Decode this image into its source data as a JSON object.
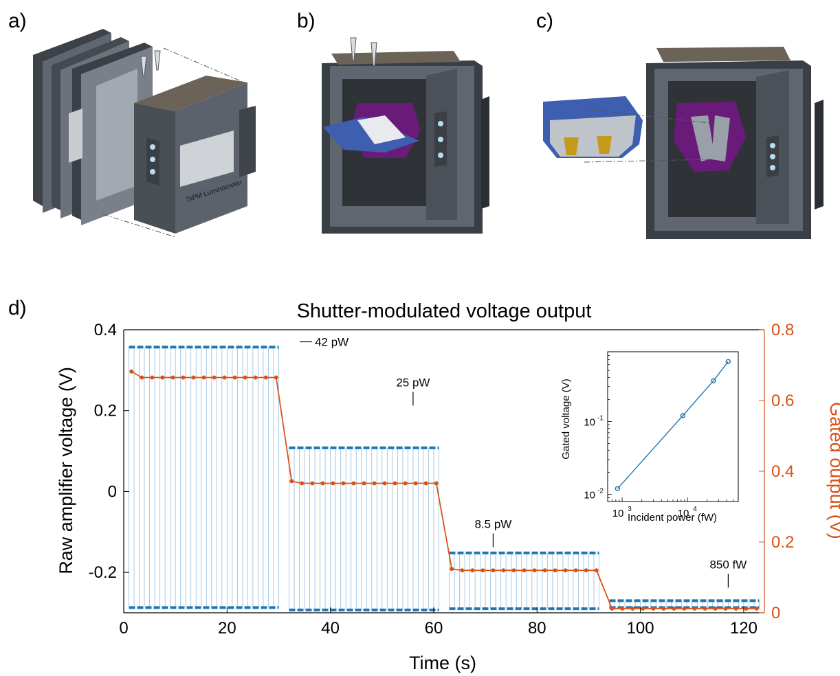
{
  "panels": {
    "a": "a)",
    "b": "b)",
    "c": "c)",
    "d": "d)"
  },
  "device_label": "SiPM Luminometer",
  "colors": {
    "blue": "#1f77b4",
    "orange": "#d95319",
    "purple": "#6a1b7a",
    "device_gray": "#5f6670",
    "device_dark": "#2f3338",
    "lid": "#6b6358",
    "insert_blue": "#3e5fb0",
    "gold": "#c49a1c"
  },
  "chart_data": {
    "type": "line",
    "title": "Shutter-modulated voltage output",
    "xlabel": "Time (s)",
    "ylabel": "Raw amplifier voltage (V)",
    "y2label": "Gated output (V)",
    "xlim": [
      0,
      124
    ],
    "ylim": [
      -0.3,
      0.4
    ],
    "y2lim": [
      0,
      0.8
    ],
    "xticks": [
      "0",
      "20",
      "40",
      "60",
      "80",
      "100",
      "120"
    ],
    "yticks": [
      "-0.2",
      "0",
      "0.2",
      "0.4"
    ],
    "y2ticks": [
      "0",
      "0.2",
      "0.4",
      "0.6",
      "0.8"
    ],
    "raw_series": {
      "name": "Raw amplifier voltage",
      "segments": [
        {
          "t_start": 1,
          "t_end": 30,
          "high": 0.357,
          "low": -0.287
        },
        {
          "t_start": 32,
          "t_end": 61,
          "high": 0.108,
          "low": -0.293
        },
        {
          "t_start": 63,
          "t_end": 92,
          "high": -0.152,
          "low": -0.29
        },
        {
          "t_start": 94,
          "t_end": 123,
          "high": -0.27,
          "low": -0.287
        }
      ],
      "period": 1
    },
    "gated_series": {
      "name": "Gated output",
      "points": [
        [
          1.5,
          0.682
        ],
        [
          3.5,
          0.665
        ],
        [
          5.5,
          0.665
        ],
        [
          7.5,
          0.665
        ],
        [
          9.5,
          0.665
        ],
        [
          11.5,
          0.665
        ],
        [
          13.5,
          0.665
        ],
        [
          15.5,
          0.665
        ],
        [
          17.5,
          0.665
        ],
        [
          19.5,
          0.665
        ],
        [
          21.5,
          0.665
        ],
        [
          23.5,
          0.665
        ],
        [
          25.5,
          0.665
        ],
        [
          27.5,
          0.665
        ],
        [
          29.5,
          0.665
        ],
        [
          32.5,
          0.372
        ],
        [
          34.5,
          0.366
        ],
        [
          36.5,
          0.366
        ],
        [
          38.5,
          0.366
        ],
        [
          40.5,
          0.366
        ],
        [
          42.5,
          0.366
        ],
        [
          44.5,
          0.366
        ],
        [
          46.5,
          0.366
        ],
        [
          48.5,
          0.366
        ],
        [
          50.5,
          0.366
        ],
        [
          52.5,
          0.366
        ],
        [
          54.5,
          0.366
        ],
        [
          56.5,
          0.366
        ],
        [
          58.5,
          0.366
        ],
        [
          60.5,
          0.366
        ],
        [
          63.5,
          0.124
        ],
        [
          65.5,
          0.12
        ],
        [
          67.5,
          0.12
        ],
        [
          69.5,
          0.12
        ],
        [
          71.5,
          0.12
        ],
        [
          73.5,
          0.12
        ],
        [
          75.5,
          0.12
        ],
        [
          77.5,
          0.12
        ],
        [
          79.5,
          0.12
        ],
        [
          81.5,
          0.12
        ],
        [
          83.5,
          0.12
        ],
        [
          85.5,
          0.12
        ],
        [
          87.5,
          0.12
        ],
        [
          89.5,
          0.12
        ],
        [
          91.5,
          0.12
        ],
        [
          94.5,
          0.012
        ],
        [
          96.5,
          0.012
        ],
        [
          98.5,
          0.012
        ],
        [
          100.5,
          0.012
        ],
        [
          102.5,
          0.012
        ],
        [
          104.5,
          0.012
        ],
        [
          106.5,
          0.012
        ],
        [
          108.5,
          0.012
        ],
        [
          110.5,
          0.012
        ],
        [
          112.5,
          0.012
        ],
        [
          114.5,
          0.012
        ],
        [
          116.5,
          0.012
        ],
        [
          118.5,
          0.012
        ],
        [
          120.5,
          0.012
        ],
        [
          122.5,
          0.012
        ]
      ]
    },
    "annotations": [
      {
        "text": "42 pW",
        "x": 37,
        "y": 0.36
      },
      {
        "text": "25 pW",
        "x": 56,
        "y": 0.26
      },
      {
        "text": "8.5 pW",
        "x": 71.5,
        "y": -0.09
      },
      {
        "text": "850 fW",
        "x": 117,
        "y": -0.19
      }
    ],
    "inset": {
      "type": "line",
      "xlabel": "Incident power (fW)",
      "ylabel": "Gated voltage (V)",
      "xscale": "log",
      "yscale": "log",
      "xlim": [
        600,
        60000
      ],
      "ylim": [
        0.008,
        0.9
      ],
      "xticks": [
        {
          "v": 1000,
          "base": "10",
          "exp": "3"
        },
        {
          "v": 10000,
          "base": "10",
          "exp": "4"
        }
      ],
      "yticks": [
        {
          "v": 0.01,
          "base": "10",
          "exp": "-2"
        },
        {
          "v": 0.1,
          "base": "10",
          "exp": "-1"
        }
      ],
      "points": [
        [
          850,
          0.012
        ],
        [
          8500,
          0.12
        ],
        [
          25000,
          0.36
        ],
        [
          42000,
          0.66
        ]
      ]
    }
  }
}
